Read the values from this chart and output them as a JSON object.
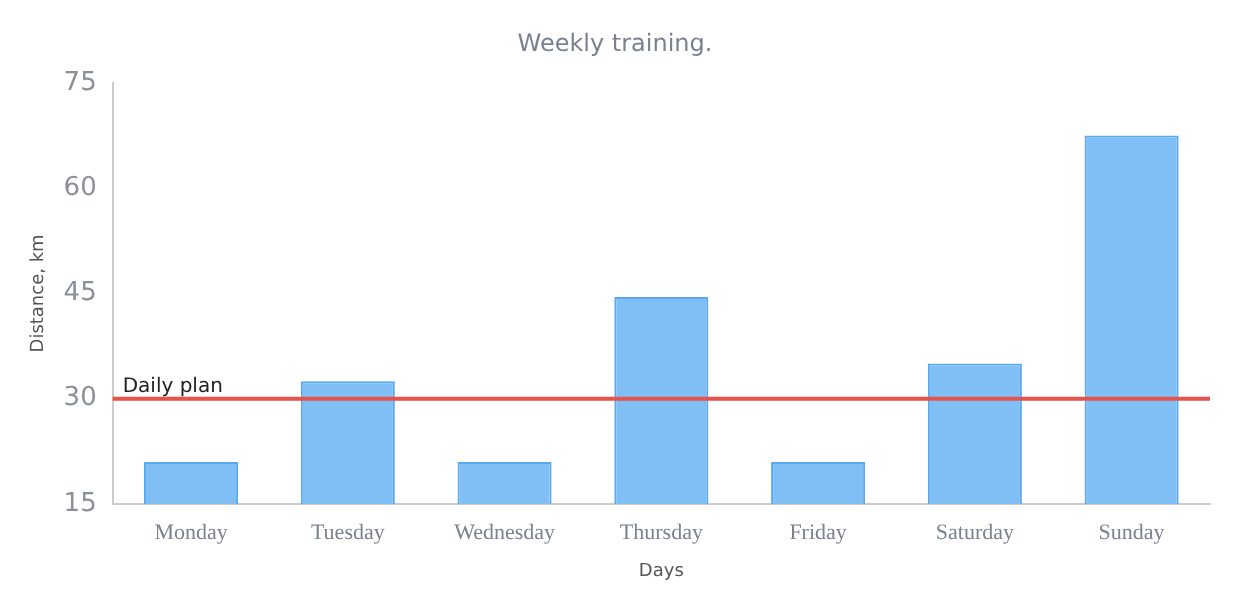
{
  "chart_data": {
    "type": "bar",
    "title": "Weekly training.",
    "xlabel": "Days",
    "ylabel": "Distance, km",
    "categories": [
      "Monday",
      "Tuesday",
      "Wednesday",
      "Thursday",
      "Friday",
      "Saturday",
      "Sunday"
    ],
    "values": [
      21,
      32.5,
      21,
      44.5,
      21,
      35,
      67.5
    ],
    "color": "#7fbff5",
    "ylim": [
      15,
      75
    ],
    "yticks": [
      15,
      30,
      45,
      60,
      75
    ],
    "grid": false,
    "legend": false,
    "ref_lines": [
      {
        "axis": "y",
        "value": 30,
        "label": "Daily plan",
        "color": "#e5534b"
      }
    ]
  }
}
